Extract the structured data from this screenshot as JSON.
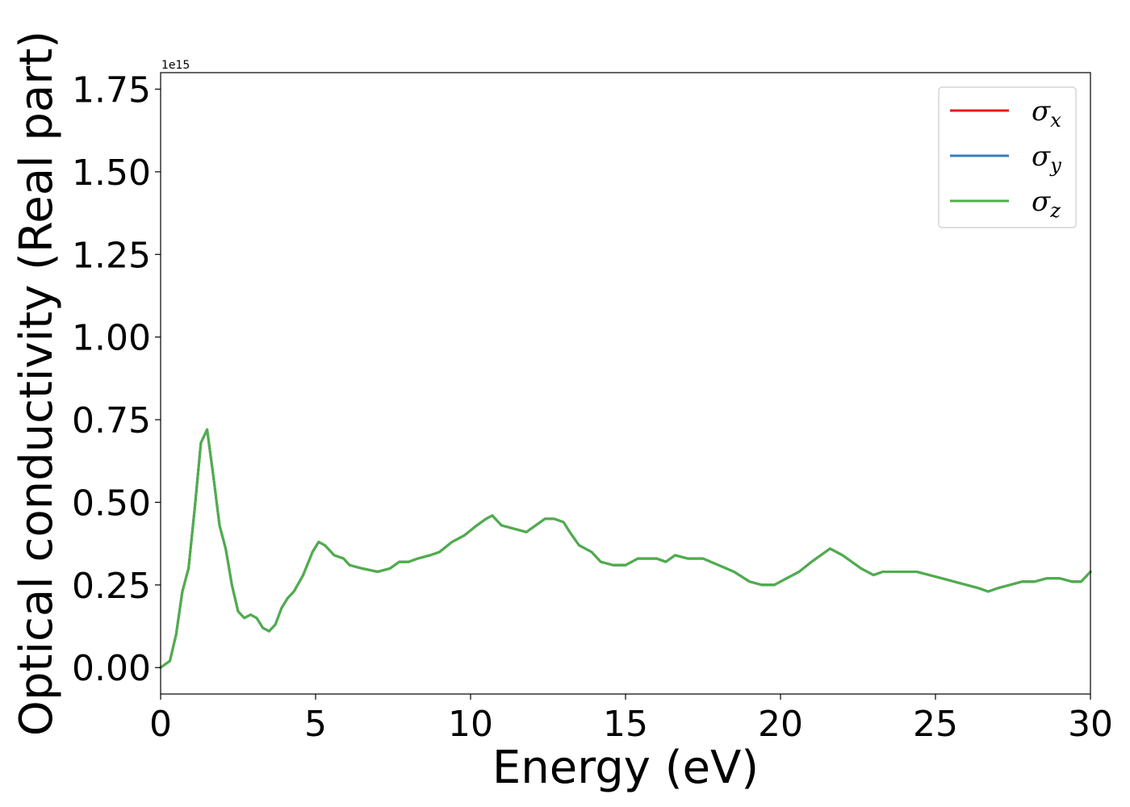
{
  "chart_data": {
    "type": "line",
    "xlabel": "Energy (eV)",
    "ylabel": "Optical conductivity (Real part)",
    "y_offset_text": "1e15",
    "xlim": [
      0,
      30
    ],
    "ylim": [
      -0.08,
      1.8
    ],
    "y_scale_factor": 1000000000000000.0,
    "xticks": [
      0,
      5,
      10,
      15,
      20,
      25,
      30
    ],
    "xtick_labels": [
      "0",
      "5",
      "10",
      "15",
      "20",
      "25",
      "30"
    ],
    "yticks": [
      0.0,
      0.25,
      0.5,
      0.75,
      1.0,
      1.25,
      1.5,
      1.75
    ],
    "ytick_labels": [
      "0.00",
      "0.25",
      "0.50",
      "0.75",
      "1.00",
      "1.25",
      "1.50",
      "1.75"
    ],
    "grid": false,
    "legend_position": "top-right",
    "legend": [
      {
        "symbol": "σ",
        "subscript": "x",
        "color": "#e41a1c"
      },
      {
        "symbol": "σ",
        "subscript": "y",
        "color": "#377eb8"
      },
      {
        "symbol": "σ",
        "subscript": "z",
        "color": "#4daf4a"
      }
    ],
    "x": [
      0,
      0.3,
      0.5,
      0.7,
      0.9,
      1.1,
      1.3,
      1.5,
      1.7,
      1.9,
      2.1,
      2.3,
      2.5,
      2.7,
      2.9,
      3.1,
      3.3,
      3.5,
      3.7,
      3.9,
      4.1,
      4.3,
      4.6,
      4.9,
      5.1,
      5.3,
      5.6,
      5.9,
      6.1,
      6.5,
      7.0,
      7.4,
      7.7,
      8.0,
      8.3,
      8.7,
      9.0,
      9.4,
      9.8,
      10.2,
      10.5,
      10.7,
      11.0,
      11.4,
      11.8,
      12.1,
      12.4,
      12.7,
      13.0,
      13.2,
      13.5,
      13.9,
      14.2,
      14.6,
      15.0,
      15.4,
      15.7,
      16.0,
      16.3,
      16.6,
      17.0,
      17.5,
      18.0,
      18.5,
      19.0,
      19.4,
      19.8,
      20.2,
      20.6,
      21.0,
      21.3,
      21.6,
      22.0,
      22.3,
      22.6,
      23.0,
      23.3,
      23.6,
      24.0,
      24.4,
      24.8,
      25.2,
      25.6,
      26.0,
      26.4,
      26.7,
      27.0,
      27.4,
      27.8,
      28.2,
      28.6,
      29.0,
      29.4,
      29.7,
      30.0
    ],
    "series": [
      {
        "name": "σx",
        "color": "#e41a1c",
        "values": [
          0.0,
          0.02,
          0.1,
          0.23,
          0.3,
          0.48,
          0.68,
          0.72,
          0.58,
          0.43,
          0.36,
          0.25,
          0.17,
          0.15,
          0.16,
          0.15,
          0.12,
          0.11,
          0.13,
          0.18,
          0.21,
          0.23,
          0.28,
          0.35,
          0.38,
          0.37,
          0.34,
          0.33,
          0.31,
          0.3,
          0.29,
          0.3,
          0.32,
          0.32,
          0.33,
          0.34,
          0.35,
          0.38,
          0.4,
          0.43,
          0.45,
          0.46,
          0.43,
          0.42,
          0.41,
          0.43,
          0.45,
          0.45,
          0.44,
          0.41,
          0.37,
          0.35,
          0.32,
          0.31,
          0.31,
          0.33,
          0.33,
          0.33,
          0.32,
          0.34,
          0.33,
          0.33,
          0.31,
          0.29,
          0.26,
          0.25,
          0.25,
          0.27,
          0.29,
          0.32,
          0.34,
          0.36,
          0.34,
          0.32,
          0.3,
          0.28,
          0.29,
          0.29,
          0.29,
          0.29,
          0.28,
          0.27,
          0.26,
          0.25,
          0.24,
          0.23,
          0.24,
          0.25,
          0.26,
          0.26,
          0.27,
          0.27,
          0.26,
          0.26,
          0.29
        ]
      },
      {
        "name": "σy",
        "color": "#377eb8",
        "values": [
          0.0,
          0.02,
          0.1,
          0.23,
          0.3,
          0.48,
          0.68,
          0.72,
          0.58,
          0.43,
          0.36,
          0.25,
          0.17,
          0.15,
          0.16,
          0.15,
          0.12,
          0.11,
          0.13,
          0.18,
          0.21,
          0.23,
          0.28,
          0.35,
          0.38,
          0.37,
          0.34,
          0.33,
          0.31,
          0.3,
          0.29,
          0.3,
          0.32,
          0.32,
          0.33,
          0.34,
          0.35,
          0.38,
          0.4,
          0.43,
          0.45,
          0.46,
          0.43,
          0.42,
          0.41,
          0.43,
          0.45,
          0.45,
          0.44,
          0.41,
          0.37,
          0.35,
          0.32,
          0.31,
          0.31,
          0.33,
          0.33,
          0.33,
          0.32,
          0.34,
          0.33,
          0.33,
          0.31,
          0.29,
          0.26,
          0.25,
          0.25,
          0.27,
          0.29,
          0.32,
          0.34,
          0.36,
          0.34,
          0.32,
          0.3,
          0.28,
          0.29,
          0.29,
          0.29,
          0.29,
          0.28,
          0.27,
          0.26,
          0.25,
          0.24,
          0.23,
          0.24,
          0.25,
          0.26,
          0.26,
          0.27,
          0.27,
          0.26,
          0.26,
          0.29
        ]
      },
      {
        "name": "σz",
        "color": "#4daf4a",
        "values": [
          0.0,
          0.02,
          0.1,
          0.23,
          0.3,
          0.48,
          0.68,
          0.72,
          0.58,
          0.43,
          0.36,
          0.25,
          0.17,
          0.15,
          0.16,
          0.15,
          0.12,
          0.11,
          0.13,
          0.18,
          0.21,
          0.23,
          0.28,
          0.35,
          0.38,
          0.37,
          0.34,
          0.33,
          0.31,
          0.3,
          0.29,
          0.3,
          0.32,
          0.32,
          0.33,
          0.34,
          0.35,
          0.38,
          0.4,
          0.43,
          0.45,
          0.46,
          0.43,
          0.42,
          0.41,
          0.43,
          0.45,
          0.45,
          0.44,
          0.41,
          0.37,
          0.35,
          0.32,
          0.31,
          0.31,
          0.33,
          0.33,
          0.33,
          0.32,
          0.34,
          0.33,
          0.33,
          0.31,
          0.29,
          0.26,
          0.25,
          0.25,
          0.27,
          0.29,
          0.32,
          0.34,
          0.36,
          0.34,
          0.32,
          0.3,
          0.28,
          0.29,
          0.29,
          0.29,
          0.29,
          0.28,
          0.27,
          0.26,
          0.25,
          0.24,
          0.23,
          0.24,
          0.25,
          0.26,
          0.26,
          0.27,
          0.27,
          0.26,
          0.26,
          0.29
        ]
      }
    ]
  }
}
